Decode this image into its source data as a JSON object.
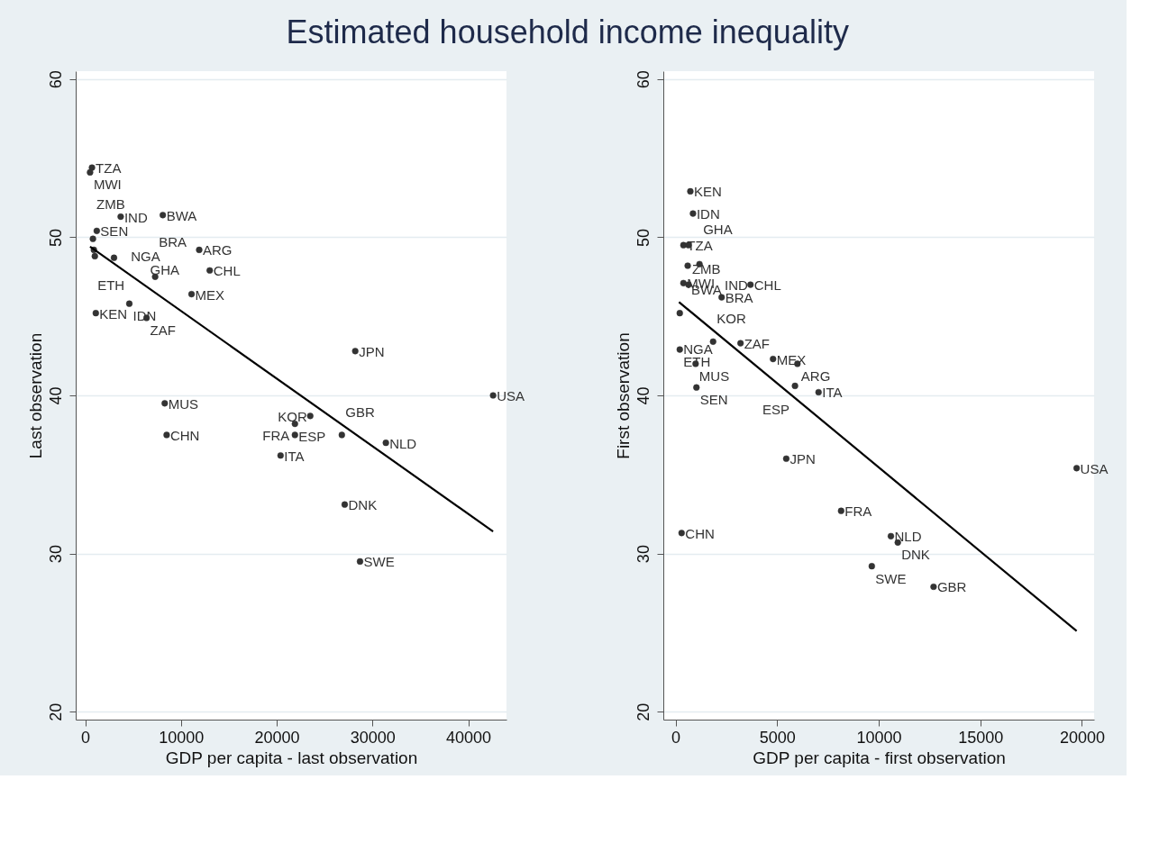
{
  "chart_data": [
    {
      "type": "scatter",
      "title": "Estimated household income inequality",
      "xlabel": "GDP per capita - last observation",
      "ylabel": "Last observation",
      "xlim": [
        -1000,
        44000
      ],
      "ylim": [
        19.5,
        60.5
      ],
      "xticks": [
        0,
        10000,
        20000,
        30000,
        40000
      ],
      "yticks": [
        20,
        30,
        40,
        50,
        60
      ],
      "grid": "y",
      "series": [
        {
          "type": "scatter",
          "color": "#333333",
          "marker": "circle",
          "x": [
            700,
            500,
            3700,
            8100,
            1200,
            800,
            900,
            1000,
            3000,
            11900,
            13000,
            7300,
            11100,
            4600,
            1100,
            6400,
            28200,
            42600,
            8300,
            8500,
            23500,
            21900,
            21900,
            26800,
            31400,
            20400,
            27100,
            28700
          ],
          "values": [
            54.4,
            54.1,
            51.3,
            51.4,
            50.4,
            49.9,
            49.2,
            48.8,
            48.7,
            49.2,
            47.9,
            47.5,
            46.4,
            45.8,
            45.2,
            44.9,
            42.8,
            40.0,
            39.5,
            37.5,
            38.7,
            38.2,
            37.5,
            37.5,
            37.0,
            36.2,
            33.1,
            29.5
          ]
        },
        {
          "type": "line",
          "color": "#000000",
          "line_style": "solid",
          "x": [
            500,
            42600
          ],
          "values": [
            49.4,
            31.4
          ]
        }
      ],
      "annotations": [
        {
          "text": "TZA",
          "x": 700,
          "y": 54.4
        },
        {
          "text": "MWI",
          "x": 500,
          "y": 54.1
        },
        {
          "text": "IND",
          "x": 3700,
          "y": 51.3
        },
        {
          "text": "BWA",
          "x": 8100,
          "y": 51.4
        },
        {
          "text": "SEN",
          "x": 1200,
          "y": 50.4
        },
        {
          "text": "ZMB",
          "x": 800,
          "y": 49.9
        },
        {
          "text": "ETH",
          "x": 900,
          "y": 49.2
        },
        {
          "text": "NGA",
          "x": 1000,
          "y": 48.8
        },
        {
          "text": "GHA",
          "x": 3000,
          "y": 48.7
        },
        {
          "text": "ARG",
          "x": 11900,
          "y": 49.2
        },
        {
          "text": "CHL",
          "x": 13000,
          "y": 47.9
        },
        {
          "text": "BRA",
          "x": 7300,
          "y": 47.5
        },
        {
          "text": "MEX",
          "x": 11100,
          "y": 46.4
        },
        {
          "text": "IDN",
          "x": 4600,
          "y": 45.8
        },
        {
          "text": "KEN",
          "x": 1100,
          "y": 45.2
        },
        {
          "text": "ZAF",
          "x": 6400,
          "y": 44.9
        },
        {
          "text": "JPN",
          "x": 28200,
          "y": 42.8
        },
        {
          "text": "USA",
          "x": 42600,
          "y": 40.0
        },
        {
          "text": "MUS",
          "x": 8300,
          "y": 39.5
        },
        {
          "text": "CHN",
          "x": 8500,
          "y": 37.5
        },
        {
          "text": "KOR",
          "x": 23500,
          "y": 38.7
        },
        {
          "text": "ESP",
          "x": 21900,
          "y": 38.2
        },
        {
          "text": "FRA",
          "x": 21900,
          "y": 37.5
        },
        {
          "text": "GBR",
          "x": 26800,
          "y": 37.5
        },
        {
          "text": "NLD",
          "x": 31400,
          "y": 37.0
        },
        {
          "text": "ITA",
          "x": 20400,
          "y": 36.2
        },
        {
          "text": "DNK",
          "x": 27100,
          "y": 33.1
        },
        {
          "text": "SWE",
          "x": 28700,
          "y": 29.5
        }
      ]
    },
    {
      "type": "scatter",
      "xlabel": "GDP per capita - first observation",
      "ylabel": "First observation",
      "xlim": [
        -600,
        20600
      ],
      "ylim": [
        19.5,
        60.5
      ],
      "xticks": [
        0,
        5000,
        10000,
        15000,
        20000
      ],
      "yticks": [
        20,
        30,
        40,
        50,
        60
      ],
      "grid": "y",
      "series": [
        {
          "type": "scatter",
          "color": "#333333",
          "marker": "circle",
          "x": [
            730,
            860,
            390,
            640,
            600,
            1180,
            390,
            640,
            3690,
            2270,
            210,
            1850,
            3200,
            210,
            4800,
            6000,
            990,
            1030,
            5880,
            7040,
            5450,
            19740,
            8150,
            300,
            10600,
            10940,
            9660,
            12700
          ],
          "values": [
            52.9,
            51.5,
            49.5,
            49.5,
            48.2,
            48.3,
            47.1,
            47.0,
            47.0,
            46.2,
            45.2,
            43.4,
            43.3,
            42.9,
            42.3,
            42.0,
            42.0,
            40.5,
            40.6,
            40.2,
            36.0,
            35.4,
            32.7,
            31.3,
            31.1,
            30.7,
            29.2,
            27.9
          ]
        },
        {
          "type": "line",
          "color": "#000000",
          "line_style": "solid",
          "x": [
            170,
            19740
          ],
          "values": [
            45.9,
            25.1
          ]
        }
      ],
      "annotations": [
        {
          "text": "KEN",
          "x": 730,
          "y": 52.9
        },
        {
          "text": "IDN",
          "x": 860,
          "y": 51.5
        },
        {
          "text": "TZA",
          "x": 390,
          "y": 49.5
        },
        {
          "text": "ZMB",
          "x": 640,
          "y": 49.5
        },
        {
          "text": "BWA",
          "x": 600,
          "y": 48.2
        },
        {
          "text": "GHA",
          "x": 1180,
          "y": 48.3
        },
        {
          "text": "MWI",
          "x": 390,
          "y": 47.1
        },
        {
          "text": "IND",
          "x": 640,
          "y": 47.0
        },
        {
          "text": "CHL",
          "x": 3690,
          "y": 47.0
        },
        {
          "text": "BRA",
          "x": 2270,
          "y": 46.2
        },
        {
          "text": "NGA",
          "x": 210,
          "y": 45.2
        },
        {
          "text": "KOR",
          "x": 1850,
          "y": 43.4
        },
        {
          "text": "ZAF",
          "x": 3200,
          "y": 43.3
        },
        {
          "text": "ETH",
          "x": 210,
          "y": 42.9
        },
        {
          "text": "MEX",
          "x": 4800,
          "y": 42.3
        },
        {
          "text": "ARG",
          "x": 6000,
          "y": 42.0
        },
        {
          "text": "MUS",
          "x": 990,
          "y": 42.0
        },
        {
          "text": "SEN",
          "x": 1030,
          "y": 40.5
        },
        {
          "text": "ESP",
          "x": 5880,
          "y": 40.6
        },
        {
          "text": "ITA",
          "x": 7040,
          "y": 40.2
        },
        {
          "text": "JPN",
          "x": 5450,
          "y": 36.0
        },
        {
          "text": "USA",
          "x": 19740,
          "y": 35.4
        },
        {
          "text": "FRA",
          "x": 8150,
          "y": 32.7
        },
        {
          "text": "CHN",
          "x": 300,
          "y": 31.3
        },
        {
          "text": "NLD",
          "x": 10600,
          "y": 31.1
        },
        {
          "text": "DNK",
          "x": 10940,
          "y": 30.7
        },
        {
          "text": "SWE",
          "x": 9660,
          "y": 29.2
        },
        {
          "text": "GBR",
          "x": 12700,
          "y": 27.9
        }
      ]
    }
  ]
}
